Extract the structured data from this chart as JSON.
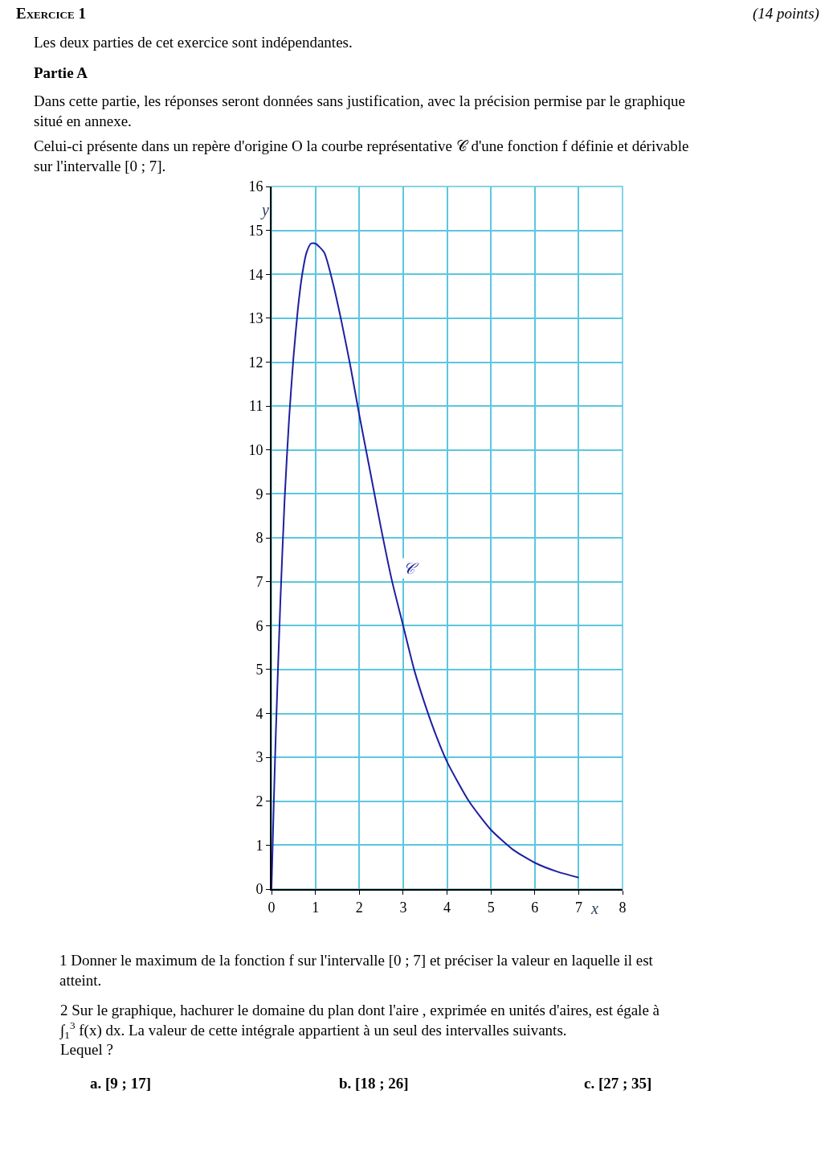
{
  "chart_data": {
    "type": "line",
    "title": "Exercice 1",
    "subtitle": "(14 points)",
    "xlabel": "x",
    "ylabel": "y",
    "x": [
      0,
      0.05,
      0.1,
      0.2,
      0.3,
      0.4,
      0.5,
      0.6,
      0.7,
      0.8,
      0.9,
      1,
      1.2,
      1.4,
      1.6,
      1.8,
      2,
      2.25,
      2.5,
      2.75,
      3,
      3.25,
      3.5,
      3.75,
      4,
      4.5,
      5,
      5.5,
      6,
      6.5,
      7
    ],
    "series": [
      {
        "color": "#1f1fa0",
        "values": [
          0,
          1.9,
          3.6,
          6.5,
          8.9,
          10.7,
          12.1,
          13.2,
          14.0,
          14.5,
          14.7,
          14.7,
          14.5,
          13.8,
          12.9,
          11.9,
          10.8,
          9.5,
          8.2,
          7.0,
          6.0,
          5.0,
          4.2,
          3.5,
          2.9,
          2.0,
          1.35,
          0.9,
          0.6,
          0.4,
          0.26
        ]
      }
    ],
    "xlim": [
      0,
      8
    ],
    "ylim": [
      0,
      16
    ],
    "xticks": [
      0,
      1,
      2,
      3,
      4,
      5,
      6,
      7,
      8
    ],
    "yticks": [
      0,
      1,
      2,
      3,
      4,
      5,
      6,
      7,
      8,
      9,
      10,
      11,
      12,
      13,
      14,
      15,
      16
    ],
    "grid": true,
    "legend": false,
    "marker": "none",
    "line_style": "solid",
    "annotations": [
      "Les deux parties de cet exercice sont indépendantes.",
      "Partie A",
      "Dans cette partie, les réponses seront données sans justification, avec la précision permise par le graphique situé en annexe.",
      "Celui-ci présente dans un repère d'origine O la courbe représentative 𝒞 d'une fonction f définie et dérivable sur l'intervalle [0 ; 7].",
      "𝒞",
      "1 Donner le maximum de la fonction f sur l'intervalle [0 ; 7] et préciser la valeur en laquelle il est atteint.",
      "2 Sur le graphique, hachurer le domaine du plan dont l'aire , exprimée en unités d'aires, est égale à ∫$_{1}$$^{3}$ f(x) dx. La valeur de cette intégrale appartient à un seul des intervalles suivants. Lequel ?",
      "a. [9 ; 17]",
      "b. [18 ; 26]",
      "c. [27 ; 35]"
    ]
  }
}
